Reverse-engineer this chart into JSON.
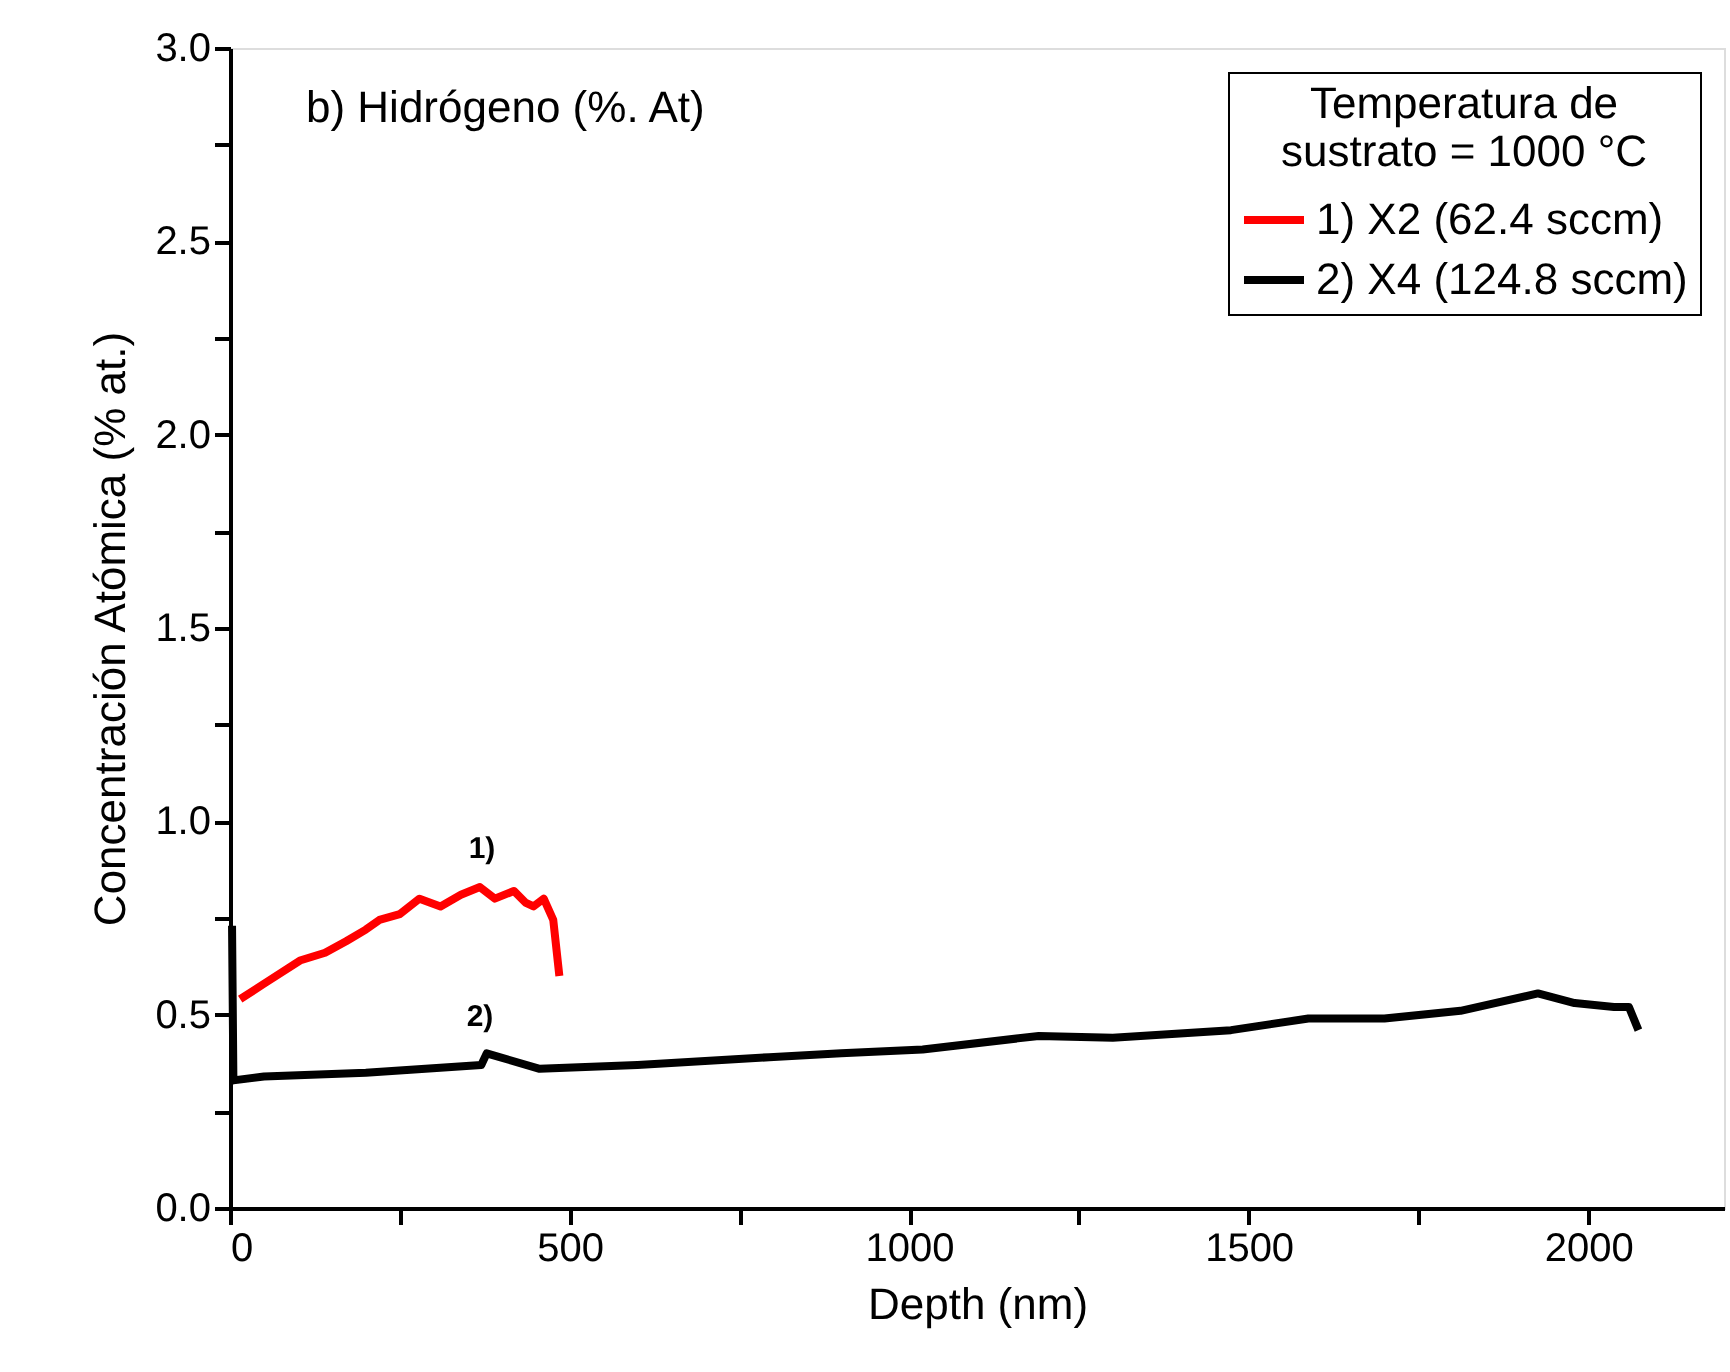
{
  "chart_data": {
    "type": "line",
    "title": "b) Hidrógeno (%. At)",
    "xlabel": "Depth (nm)",
    "ylabel": "Concentración Atómica (% at.)",
    "legend_title": [
      "Temperatura de",
      "sustrato = 1000 °C"
    ],
    "legend": "top right",
    "grid": false,
    "marker": "none",
    "line_style": "solid",
    "xlim": [
      0,
      2200
    ],
    "xticks": [
      0,
      {
        "value": 250,
        "label": null
      },
      500,
      {
        "value": 750,
        "label": null
      },
      1000,
      {
        "value": 1250,
        "label": null
      },
      1500,
      {
        "value": 1750,
        "label": null
      },
      2000
    ],
    "ylim": [
      0,
      3.0
    ],
    "yticks": [
      {
        "value": 0,
        "label": "0.0"
      },
      {
        "value": 0.25,
        "label": null
      },
      0.5,
      {
        "value": 0.75,
        "label": null
      },
      {
        "value": 1,
        "label": "1.0"
      },
      {
        "value": 1.25,
        "label": null
      },
      1.5,
      {
        "value": 1.75,
        "label": null
      },
      {
        "value": 2,
        "label": "2.0"
      },
      {
        "value": 2.25,
        "label": null
      },
      2.5,
      {
        "value": 2.75,
        "label": null
      },
      {
        "value": 3,
        "label": "3.0"
      }
    ],
    "series": [
      {
        "name": "1) X2 (62.4 sccm)",
        "color": "#ff0000",
        "x": [
          15,
          50,
          103,
          140,
          171,
          200,
          220,
          250,
          279,
          310,
          340,
          368,
          390,
          418,
          435,
          447,
          462,
          476,
          485
        ],
        "values": [
          0.54,
          0.58,
          0.64,
          0.66,
          0.69,
          0.72,
          0.745,
          0.76,
          0.8,
          0.78,
          0.81,
          0.83,
          0.8,
          0.82,
          0.79,
          0.78,
          0.8,
          0.745,
          0.6
        ]
      },
      {
        "name": "2) X4 (124.8 sccm)",
        "color": "#000000",
        "x": [
          3,
          5,
          50,
          200,
          370,
          378,
          456,
          600,
          794,
          900,
          1020,
          1191,
          1300,
          1474,
          1588,
          1700,
          1812,
          1926,
          1980,
          2038,
          2060,
          2074
        ],
        "values": [
          0.73,
          0.33,
          0.34,
          0.35,
          0.37,
          0.4,
          0.36,
          0.37,
          0.39,
          0.4,
          0.41,
          0.445,
          0.44,
          0.46,
          0.49,
          0.49,
          0.51,
          0.555,
          0.53,
          0.52,
          0.52,
          0.46
        ]
      }
    ],
    "annotations": [
      "1)",
      "2)"
    ]
  }
}
